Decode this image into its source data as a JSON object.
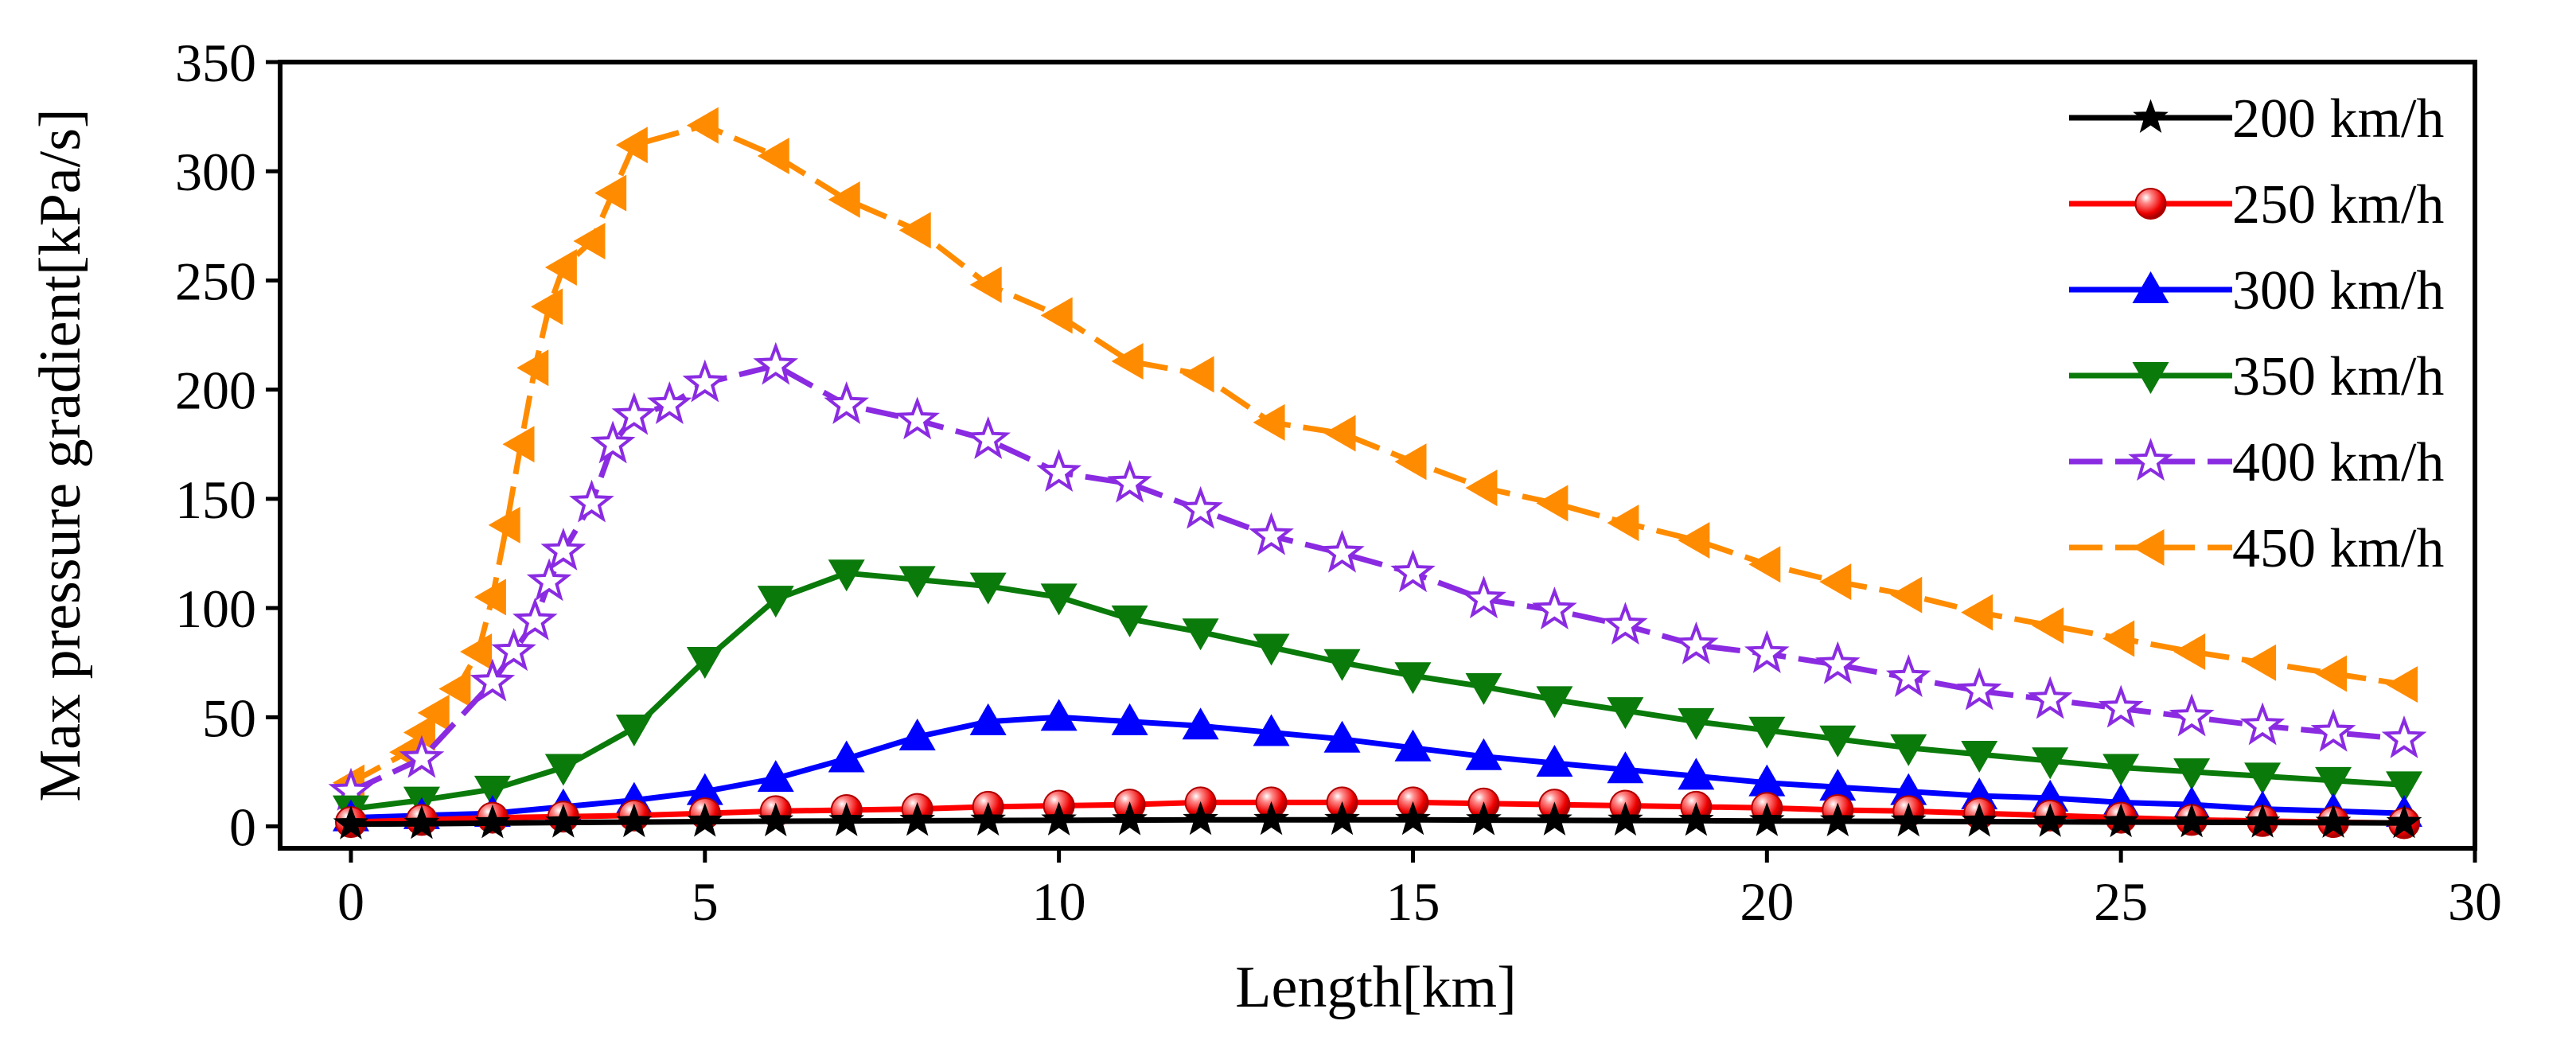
{
  "chart_data": {
    "type": "line",
    "title": "",
    "xlabel": "Length[km]",
    "ylabel": "Max pressure gradient[kPa/s]",
    "xlim": [
      -1,
      30
    ],
    "ylim": [
      -10,
      350
    ],
    "xticks": [
      0,
      5,
      10,
      15,
      20,
      25,
      30
    ],
    "yticks": [
      0,
      50,
      100,
      150,
      200,
      250,
      300,
      350
    ],
    "legend_position": "top-right",
    "series": [
      {
        "name": "200 km/h",
        "color": "#000000",
        "marker": "star-filled",
        "dashed": false,
        "x": [
          0,
          1,
          2,
          3,
          4,
          5,
          6,
          7,
          8,
          9,
          10,
          11,
          12,
          13,
          14,
          15,
          16,
          17,
          18,
          19,
          20,
          21,
          22,
          23,
          24,
          25,
          26,
          27,
          28,
          29
        ],
        "y": [
          1,
          1.2,
          1.5,
          1.8,
          2,
          2.2,
          2.4,
          2.5,
          2.6,
          2.7,
          2.8,
          2.9,
          3,
          3,
          3,
          3,
          2.9,
          2.8,
          2.7,
          2.6,
          2.5,
          2.4,
          2.3,
          2.2,
          2.1,
          2,
          1.9,
          1.8,
          1.7,
          1.6
        ]
      },
      {
        "name": "250 km/h",
        "color": "#ff0000",
        "marker": "sphere",
        "dashed": false,
        "x": [
          0,
          1,
          2,
          3,
          4,
          5,
          6,
          7,
          8,
          9,
          10,
          11,
          12,
          13,
          14,
          15,
          16,
          17,
          18,
          19,
          20,
          21,
          22,
          23,
          24,
          25,
          26,
          27,
          28,
          29
        ],
        "y": [
          2,
          3,
          4,
          4.5,
          5,
          6,
          7,
          7.5,
          8,
          9,
          9.5,
          10,
          11,
          11,
          11,
          11,
          10.5,
          10,
          9.5,
          9,
          8.5,
          7.5,
          7,
          6,
          5,
          4,
          3,
          2.5,
          2,
          1.5
        ]
      },
      {
        "name": "300 km/h",
        "color": "#0000ff",
        "marker": "triangle-up",
        "dashed": false,
        "x": [
          0,
          1,
          2,
          3,
          4,
          5,
          6,
          7,
          8,
          9,
          10,
          11,
          12,
          13,
          14,
          15,
          16,
          17,
          18,
          19,
          20,
          21,
          22,
          23,
          24,
          25,
          26,
          27,
          28,
          29
        ],
        "y": [
          4,
          5,
          6,
          9,
          12,
          16,
          22,
          31,
          41,
          48,
          50,
          48,
          46,
          43,
          40,
          36,
          32,
          29,
          26,
          23,
          20,
          18,
          16,
          14,
          13,
          11,
          10,
          8,
          7,
          6
        ]
      },
      {
        "name": "350 km/h",
        "color": "#0a7a0a",
        "marker": "triangle-down",
        "dashed": false,
        "x": [
          0,
          1,
          2,
          3,
          4,
          5,
          6,
          7,
          8,
          9,
          10,
          11,
          12,
          13,
          14,
          15,
          16,
          17,
          18,
          19,
          20,
          21,
          22,
          23,
          24,
          25,
          26,
          27,
          28,
          29
        ],
        "y": [
          8,
          12,
          17,
          27,
          45,
          76,
          104,
          116,
          113,
          110,
          105,
          95,
          89,
          82,
          75,
          69,
          64,
          58,
          53,
          48,
          44,
          40,
          36,
          33,
          30,
          27,
          25,
          23,
          21,
          19
        ]
      },
      {
        "name": "400 km/h",
        "color": "#8a2be2",
        "marker": "star-open",
        "dashed": true,
        "x": [
          0,
          1,
          2,
          2.3,
          2.6,
          2.8,
          3,
          3.4,
          3.7,
          4,
          4.5,
          5,
          6,
          7,
          8,
          9,
          10,
          11,
          12,
          13,
          14,
          15,
          16,
          17,
          18,
          19,
          20,
          21,
          22,
          23,
          24,
          25,
          26,
          27,
          28,
          29
        ],
        "y": [
          16,
          31,
          66,
          80,
          94,
          112,
          126,
          148,
          175,
          188,
          193,
          203,
          211,
          193,
          186,
          177,
          162,
          157,
          145,
          133,
          125,
          116,
          104,
          99,
          92,
          83,
          79,
          74,
          68,
          62,
          58,
          54,
          50,
          46,
          43,
          40
        ]
      },
      {
        "name": "450 km/h",
        "color": "#ff8c00",
        "marker": "triangle-left",
        "dashed": true,
        "x": [
          0,
          0.8,
          1,
          1.2,
          1.5,
          1.8,
          2,
          2.2,
          2.4,
          2.6,
          2.8,
          3,
          3.4,
          3.7,
          4,
          5,
          6,
          7,
          8,
          9,
          10,
          11,
          12,
          13,
          14,
          15,
          16,
          17,
          18,
          19,
          20,
          21,
          22,
          23,
          24,
          25,
          26,
          27,
          28,
          29
        ],
        "y": [
          20,
          34,
          43,
          52,
          63,
          80,
          105,
          138,
          175,
          210,
          238,
          256,
          268,
          290,
          312,
          321,
          307,
          287,
          273,
          248,
          234,
          213,
          207,
          185,
          180,
          167,
          155,
          148,
          139,
          131,
          120,
          112,
          106,
          98,
          92,
          86,
          80,
          75,
          70,
          65
        ]
      }
    ]
  }
}
